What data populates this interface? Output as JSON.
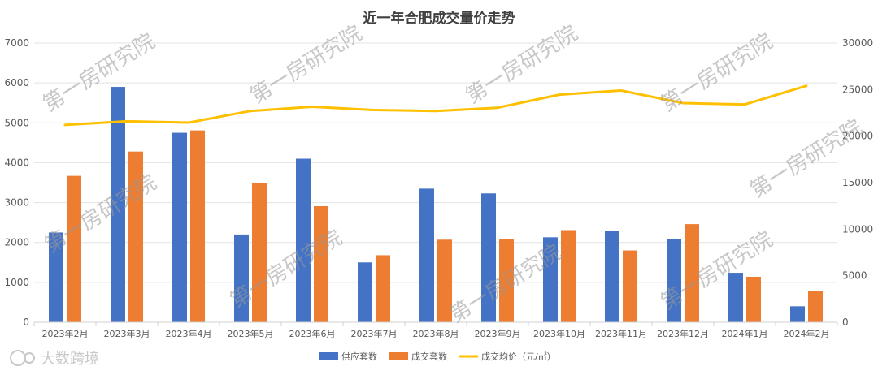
{
  "chart_data": {
    "type": "bar",
    "title": "近一年合肥成交量价走势",
    "categories": [
      "2023年2月",
      "2023年3月",
      "2023年4月",
      "2023年5月",
      "2023年6月",
      "2023年7月",
      "2023年8月",
      "2023年9月",
      "2023年10月",
      "2023年11月",
      "2023年12月",
      "2024年1月",
      "2024年2月"
    ],
    "series": [
      {
        "name": "供应套数",
        "type": "bar",
        "axis": "left",
        "color": "#4472C4",
        "values": [
          2250,
          5900,
          4750,
          2200,
          4100,
          1500,
          3350,
          3230,
          2130,
          2290,
          2090,
          1240,
          400
        ]
      },
      {
        "name": "成交套数",
        "type": "bar",
        "axis": "left",
        "color": "#ED7D31",
        "values": [
          3670,
          4280,
          4810,
          3500,
          2910,
          1680,
          2070,
          2090,
          2310,
          1800,
          2460,
          1140,
          790
        ]
      },
      {
        "name": "成交均价（元/㎡）",
        "type": "line",
        "axis": "right",
        "color": "#FFC000",
        "values": [
          21200,
          21600,
          21450,
          22700,
          23150,
          22800,
          22700,
          23050,
          24450,
          24900,
          23550,
          23400,
          25400
        ]
      }
    ],
    "y_left": {
      "min": 0,
      "max": 7000,
      "ticks": [
        0,
        1000,
        2000,
        3000,
        4000,
        5000,
        6000,
        7000
      ]
    },
    "y_right": {
      "min": 0,
      "max": 30000,
      "ticks": [
        0,
        5000,
        10000,
        15000,
        20000,
        25000,
        30000
      ]
    },
    "legend": {
      "position": "bottom"
    },
    "grid": true
  },
  "watermark": "第一房研究院",
  "brand": "大数跨境"
}
